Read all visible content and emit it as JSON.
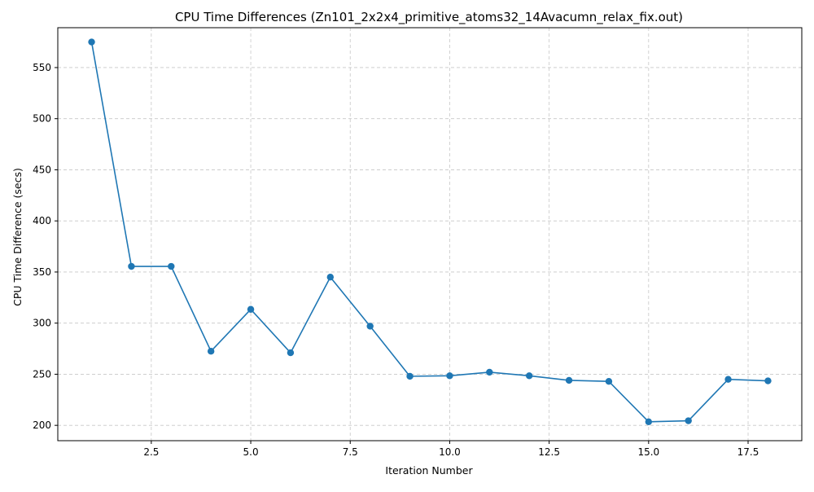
{
  "chart_data": {
    "type": "line",
    "title": "CPU Time Differences (Zn101_2x2x4_primitive_atoms32_14Avacumn_relax_fix.out)",
    "xlabel": "Iteration Number",
    "ylabel": "CPU Time Difference (secs)",
    "xlim": [
      0.15,
      18.85
    ],
    "ylim": [
      185,
      589
    ],
    "xticks": [
      2.5,
      5.0,
      7.5,
      10.0,
      12.5,
      15.0,
      17.5
    ],
    "xtick_labels": [
      "2.5",
      "5.0",
      "7.5",
      "10.0",
      "12.5",
      "15.0",
      "17.5"
    ],
    "yticks": [
      200,
      250,
      300,
      350,
      400,
      450,
      500,
      550
    ],
    "ytick_labels": [
      "200",
      "250",
      "300",
      "350",
      "400",
      "450",
      "500",
      "550"
    ],
    "grid": true,
    "marker": "circle",
    "color": "#1f77b4",
    "series": [
      {
        "x": [
          1,
          2,
          3,
          4,
          5,
          6,
          7,
          8,
          9,
          10,
          11,
          12,
          13,
          14,
          15,
          16,
          17,
          18
        ],
        "values": [
          575,
          355.5,
          355.5,
          272.5,
          313.5,
          271,
          345,
          297,
          248,
          248.5,
          252,
          248.5,
          244,
          243,
          203.5,
          204.5,
          245,
          243.5
        ]
      }
    ]
  }
}
